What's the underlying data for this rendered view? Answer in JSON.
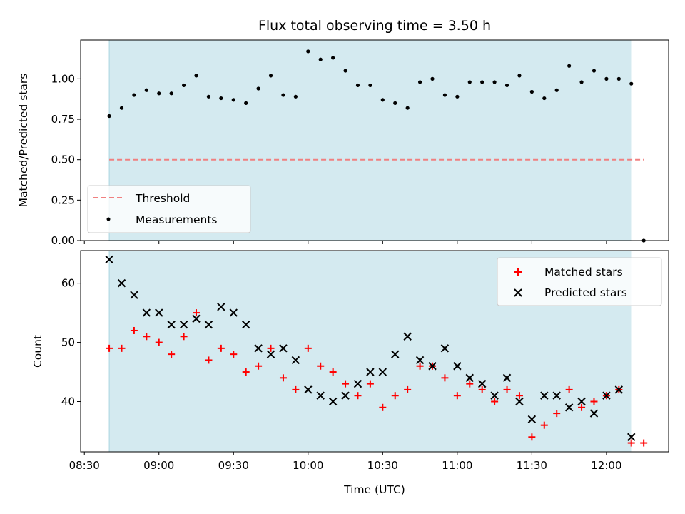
{
  "chart_data": [
    {
      "type": "scatter",
      "title": "Flux total observing time = 3.50 h",
      "ylabel": "Matched/Predicted stars",
      "ylim": [
        0,
        1.24
      ],
      "yticks": [
        0,
        0.25,
        0.5,
        0.75,
        1.0
      ],
      "yticklabels": [
        "0.00",
        "0.25",
        "0.50",
        "0.75",
        "1.00"
      ],
      "shaded_span": [
        "08:40",
        "12:10"
      ],
      "shade_color": "#d4eaf0",
      "threshold": {
        "name": "Threshold",
        "value": 0.5,
        "x": [
          "08:40",
          "12:15"
        ],
        "color": "#f08080"
      },
      "series": [
        {
          "name": "Measurements",
          "color": "#000000",
          "x": [
            "08:40",
            "08:45",
            "08:50",
            "08:55",
            "09:00",
            "09:05",
            "09:10",
            "09:15",
            "09:20",
            "09:25",
            "09:30",
            "09:35",
            "09:40",
            "09:45",
            "09:50",
            "09:55",
            "10:00",
            "10:05",
            "10:10",
            "10:15",
            "10:20",
            "10:25",
            "10:30",
            "10:35",
            "10:40",
            "10:45",
            "10:50",
            "10:55",
            "11:00",
            "11:05",
            "11:10",
            "11:15",
            "11:20",
            "11:25",
            "11:30",
            "11:35",
            "11:40",
            "11:45",
            "11:50",
            "11:55",
            "12:00",
            "12:05",
            "12:10",
            "12:15"
          ],
          "values": [
            0.77,
            0.82,
            0.9,
            0.93,
            0.91,
            0.91,
            0.96,
            1.02,
            0.89,
            0.88,
            0.87,
            0.85,
            0.94,
            1.02,
            0.9,
            0.89,
            1.17,
            1.12,
            1.13,
            1.05,
            0.96,
            0.96,
            0.87,
            0.85,
            0.82,
            0.98,
            1.0,
            0.9,
            0.89,
            0.98,
            0.98,
            0.98,
            0.96,
            1.02,
            0.92,
            0.88,
            0.93,
            1.08,
            0.98,
            1.05,
            1.0,
            1.0,
            0.97,
            0.0
          ]
        }
      ],
      "legend": {
        "position": "lower-left",
        "entries": [
          "Threshold",
          "Measurements"
        ]
      }
    },
    {
      "type": "scatter",
      "xlabel": "Time (UTC)",
      "ylabel": "Count",
      "ylim": [
        31.5,
        65.5
      ],
      "yticks": [
        40,
        50,
        60
      ],
      "xticks": [
        "08:30",
        "09:00",
        "09:30",
        "10:00",
        "10:30",
        "11:00",
        "11:30",
        "12:00"
      ],
      "shaded_span": [
        "08:40",
        "12:10"
      ],
      "shade_color": "#d4eaf0",
      "series": [
        {
          "name": "Matched stars",
          "marker": "plus",
          "color": "#ff0000",
          "x": [
            "08:40",
            "08:45",
            "08:50",
            "08:55",
            "09:00",
            "09:05",
            "09:10",
            "09:15",
            "09:20",
            "09:25",
            "09:30",
            "09:35",
            "09:40",
            "09:45",
            "09:50",
            "09:55",
            "10:00",
            "10:05",
            "10:10",
            "10:15",
            "10:20",
            "10:25",
            "10:30",
            "10:35",
            "10:40",
            "10:45",
            "10:50",
            "10:55",
            "11:00",
            "11:05",
            "11:10",
            "11:15",
            "11:20",
            "11:25",
            "11:30",
            "11:35",
            "11:40",
            "11:45",
            "11:50",
            "11:55",
            "12:00",
            "12:05",
            "12:10",
            "12:15"
          ],
          "values": [
            49,
            49,
            52,
            51,
            50,
            48,
            51,
            55,
            47,
            49,
            48,
            45,
            46,
            49,
            44,
            42,
            49,
            46,
            45,
            43,
            41,
            43,
            39,
            41,
            42,
            46,
            46,
            44,
            41,
            43,
            42,
            40,
            42,
            41,
            34,
            36,
            38,
            42,
            39,
            40,
            41,
            42,
            33,
            33
          ]
        },
        {
          "name": "Predicted stars",
          "marker": "x",
          "color": "#000000",
          "x": [
            "08:40",
            "08:45",
            "08:50",
            "08:55",
            "09:00",
            "09:05",
            "09:10",
            "09:15",
            "09:20",
            "09:25",
            "09:30",
            "09:35",
            "09:40",
            "09:45",
            "09:50",
            "09:55",
            "10:00",
            "10:05",
            "10:10",
            "10:15",
            "10:20",
            "10:25",
            "10:30",
            "10:35",
            "10:40",
            "10:45",
            "10:50",
            "10:55",
            "11:00",
            "11:05",
            "11:10",
            "11:15",
            "11:20",
            "11:25",
            "11:30",
            "11:35",
            "11:40",
            "11:45",
            "11:50",
            "11:55",
            "12:00",
            "12:05",
            "12:10"
          ],
          "values": [
            64,
            60,
            58,
            55,
            55,
            53,
            53,
            54,
            53,
            56,
            55,
            53,
            49,
            48,
            49,
            47,
            42,
            41,
            40,
            41,
            43,
            45,
            45,
            48,
            51,
            47,
            46,
            49,
            46,
            44,
            43,
            41,
            44,
            40,
            37,
            41,
            41,
            39,
            40,
            38,
            41,
            42,
            34
          ]
        }
      ],
      "legend": {
        "position": "top-right",
        "entries": [
          "Matched stars",
          "Predicted stars"
        ]
      }
    }
  ]
}
